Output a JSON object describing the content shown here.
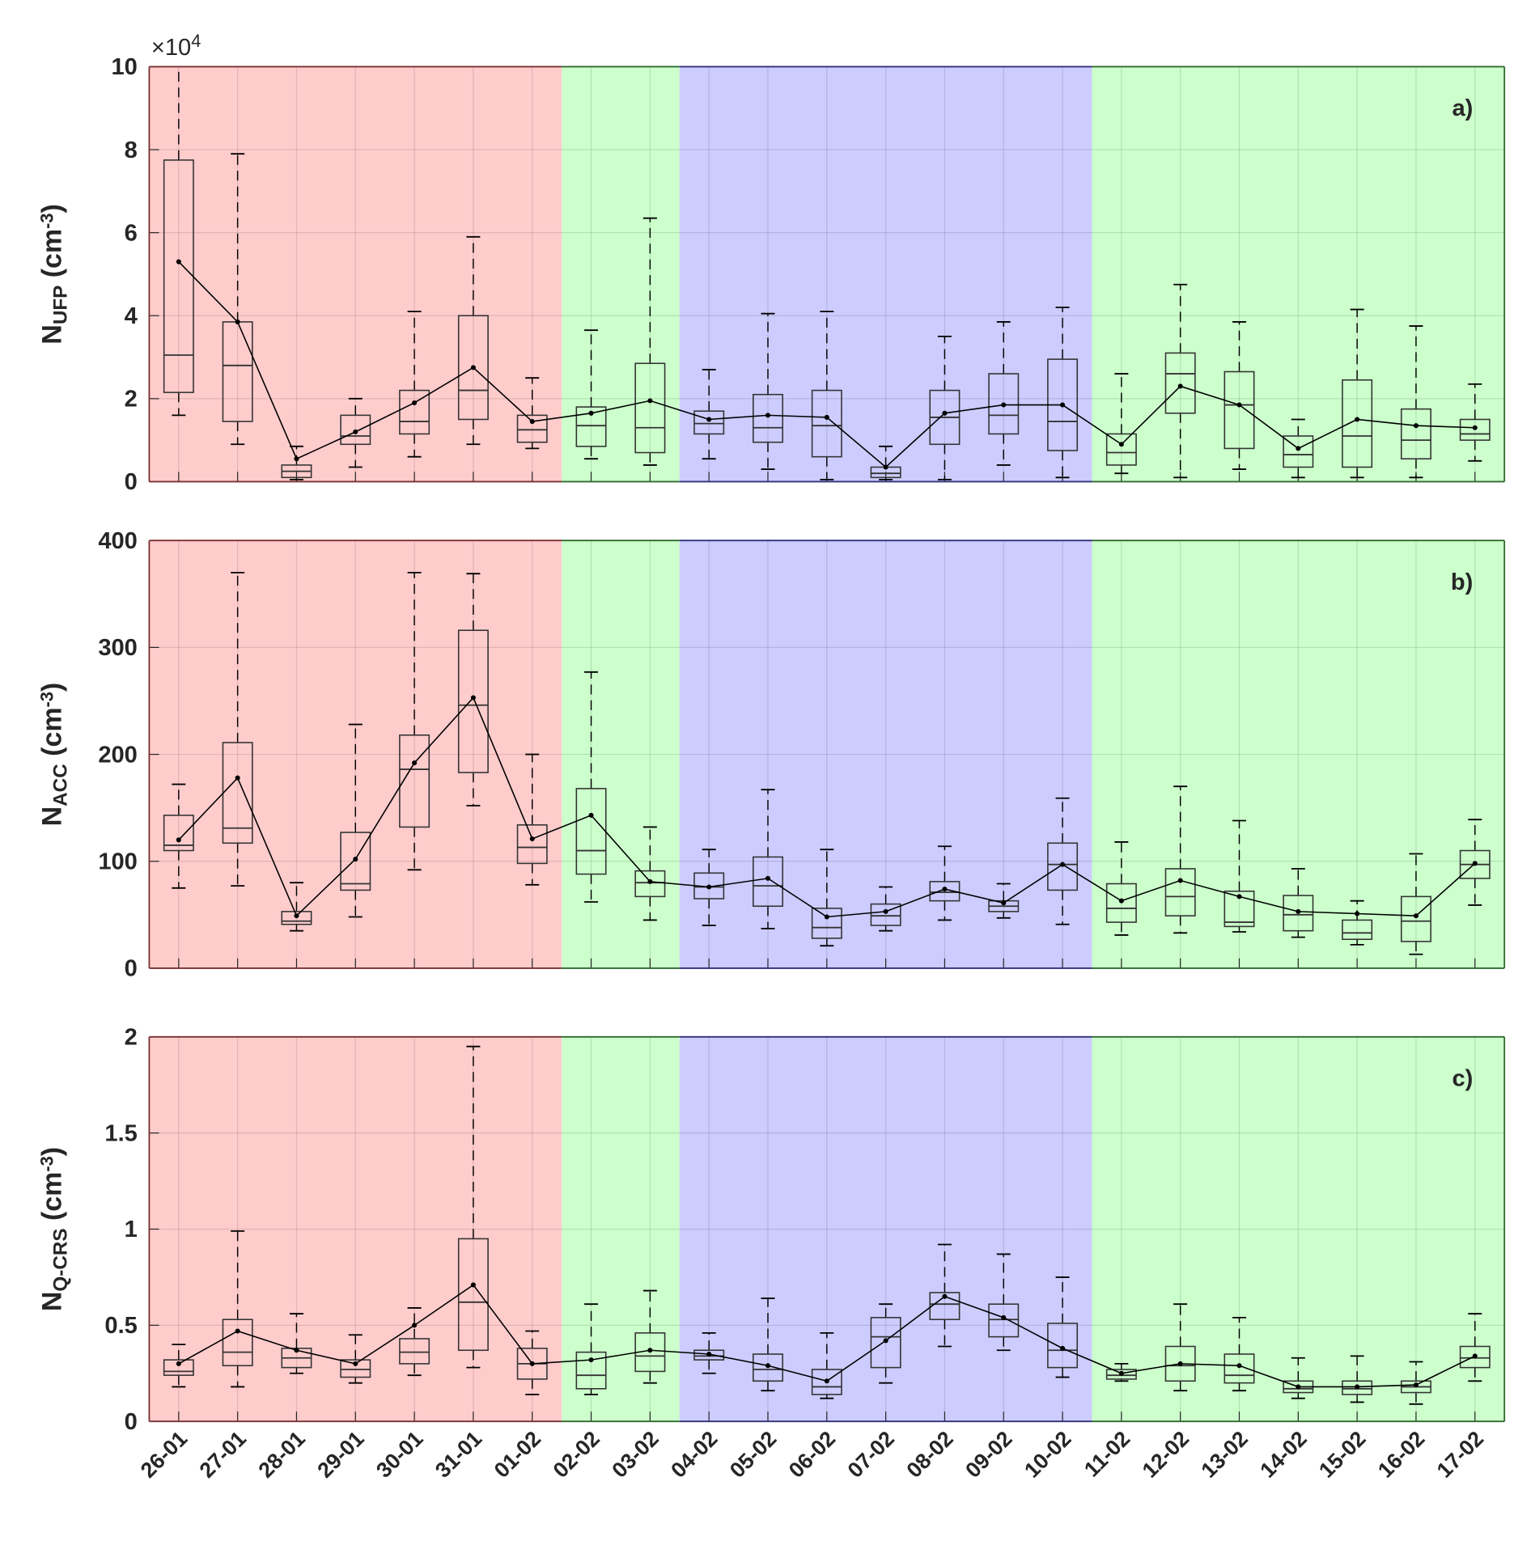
{
  "chart_data": [
    {
      "type": "box",
      "panel_label": "a)",
      "ylabel": {
        "main": "N",
        "sub": "UFP",
        "unit": " (cm",
        "sup": "-3",
        "close": ")"
      },
      "y_exponent": {
        "base": "×10",
        "power": "4"
      },
      "ylim": [
        0,
        10
      ],
      "yticks": [
        0,
        2,
        4,
        6,
        8,
        10
      ],
      "grid": true,
      "categories": [
        "26-01",
        "27-01",
        "28-01",
        "29-01",
        "30-01",
        "31-01",
        "01-02",
        "02-02",
        "03-02",
        "04-02",
        "05-02",
        "06-02",
        "07-02",
        "08-02",
        "09-02",
        "10-02",
        "11-02",
        "12-02",
        "13-02",
        "14-02",
        "15-02",
        "16-02",
        "17-02"
      ],
      "boxes": [
        [
          1.6,
          2.15,
          3.05,
          7.75,
          10,
          5.3
        ],
        [
          0.9,
          1.45,
          2.8,
          3.85,
          7.9,
          3.85
        ],
        [
          0.05,
          0.1,
          0.25,
          0.4,
          0.85,
          0.55
        ],
        [
          0.35,
          0.9,
          1.1,
          1.6,
          2.0,
          1.2
        ],
        [
          0.6,
          1.15,
          1.45,
          2.2,
          4.1,
          1.9
        ],
        [
          0.9,
          1.5,
          2.2,
          4.0,
          5.9,
          2.75
        ],
        [
          0.8,
          0.95,
          1.25,
          1.6,
          2.5,
          1.45
        ],
        [
          0.55,
          0.85,
          1.35,
          1.8,
          3.65,
          1.65
        ],
        [
          0.4,
          0.7,
          1.3,
          2.85,
          6.35,
          1.95
        ],
        [
          0.55,
          1.15,
          1.4,
          1.7,
          2.7,
          1.5
        ],
        [
          0.3,
          0.95,
          1.3,
          2.1,
          4.05,
          1.6
        ],
        [
          0.05,
          0.6,
          1.35,
          2.2,
          4.1,
          1.55
        ],
        [
          0.05,
          0.1,
          0.2,
          0.35,
          0.85,
          0.35
        ],
        [
          0.05,
          0.9,
          1.55,
          2.2,
          3.5,
          1.65
        ],
        [
          0.4,
          1.15,
          1.6,
          2.6,
          3.85,
          1.85
        ],
        [
          0.1,
          0.75,
          1.45,
          2.95,
          4.2,
          1.85
        ],
        [
          0.2,
          0.4,
          0.7,
          1.15,
          2.6,
          0.9
        ],
        [
          0.1,
          1.65,
          2.6,
          3.1,
          4.75,
          2.3
        ],
        [
          0.3,
          0.8,
          1.85,
          2.65,
          3.85,
          1.85
        ],
        [
          0.1,
          0.35,
          0.65,
          1.1,
          1.5,
          0.8
        ],
        [
          0.1,
          0.35,
          1.1,
          2.45,
          4.15,
          1.5
        ],
        [
          0.1,
          0.55,
          1.0,
          1.75,
          3.75,
          1.35
        ],
        [
          0.5,
          1.0,
          1.15,
          1.5,
          2.35,
          1.3
        ]
      ]
    },
    {
      "type": "box",
      "panel_label": "b)",
      "ylabel": {
        "main": "N",
        "sub": "ACC",
        "unit": " (cm",
        "sup": "-3",
        "close": ")"
      },
      "ylim": [
        0,
        400
      ],
      "yticks": [
        0,
        100,
        200,
        300,
        400
      ],
      "grid": true,
      "boxes": [
        [
          75,
          110,
          115,
          143,
          172,
          120
        ],
        [
          77,
          117,
          131,
          211,
          370,
          178
        ],
        [
          35,
          41,
          44,
          53,
          80,
          49
        ],
        [
          48,
          73,
          79,
          127,
          228,
          102
        ],
        [
          92,
          132,
          186,
          218,
          370,
          192
        ],
        [
          152,
          183,
          246,
          316,
          369,
          253
        ],
        [
          78,
          98,
          113,
          134,
          200,
          121
        ],
        [
          62,
          88,
          110,
          168,
          277,
          143
        ],
        [
          45,
          67,
          80,
          91,
          132,
          81
        ],
        [
          40,
          65,
          76,
          89,
          111,
          76
        ],
        [
          37,
          58,
          77,
          104,
          167,
          84
        ],
        [
          21,
          28,
          38,
          56,
          111,
          48
        ],
        [
          35,
          40,
          49,
          60,
          76,
          53
        ],
        [
          45,
          63,
          71,
          81,
          114,
          74
        ],
        [
          47,
          53,
          58,
          63,
          79,
          61
        ],
        [
          41,
          73,
          97,
          117,
          159,
          97
        ],
        [
          31,
          43,
          56,
          79,
          118,
          63
        ],
        [
          33,
          49,
          67,
          93,
          170,
          82
        ],
        [
          34,
          39,
          43,
          72,
          138,
          67
        ],
        [
          29,
          35,
          50,
          68,
          93,
          53
        ],
        [
          22,
          27,
          33,
          45,
          63,
          51
        ],
        [
          13,
          25,
          44,
          67,
          107,
          49
        ],
        [
          59,
          84,
          97,
          110,
          139,
          98
        ]
      ]
    },
    {
      "type": "box",
      "panel_label": "c)",
      "ylabel": {
        "main": "N",
        "sub": "Q-CRS",
        "unit": " (cm",
        "sup": "-3",
        "close": ")"
      },
      "ylim": [
        0,
        2
      ],
      "yticks": [
        0,
        0.5,
        1,
        1.5,
        2
      ],
      "grid": true,
      "boxes": [
        [
          0.18,
          0.24,
          0.26,
          0.32,
          0.4,
          0.3
        ],
        [
          0.18,
          0.29,
          0.36,
          0.53,
          0.99,
          0.47
        ],
        [
          0.25,
          0.28,
          0.33,
          0.38,
          0.56,
          0.37
        ],
        [
          0.2,
          0.23,
          0.27,
          0.32,
          0.45,
          0.3
        ],
        [
          0.24,
          0.3,
          0.36,
          0.43,
          0.59,
          0.5
        ],
        [
          0.28,
          0.37,
          0.62,
          0.95,
          1.95,
          0.71
        ],
        [
          0.14,
          0.22,
          0.3,
          0.38,
          0.47,
          0.3
        ],
        [
          0.14,
          0.17,
          0.24,
          0.36,
          0.61,
          0.32
        ],
        [
          0.2,
          0.26,
          0.34,
          0.46,
          0.68,
          0.37
        ],
        [
          0.25,
          0.32,
          0.34,
          0.37,
          0.46,
          0.35
        ],
        [
          0.16,
          0.21,
          0.27,
          0.35,
          0.64,
          0.29
        ],
        [
          0.12,
          0.14,
          0.18,
          0.27,
          0.46,
          0.21
        ],
        [
          0.2,
          0.28,
          0.44,
          0.54,
          0.61,
          0.42
        ],
        [
          0.39,
          0.53,
          0.61,
          0.67,
          0.92,
          0.65
        ],
        [
          0.37,
          0.44,
          0.53,
          0.61,
          0.87,
          0.54
        ],
        [
          0.23,
          0.28,
          0.37,
          0.51,
          0.75,
          0.38
        ],
        [
          0.21,
          0.22,
          0.24,
          0.27,
          0.3,
          0.25
        ],
        [
          0.16,
          0.21,
          0.29,
          0.39,
          0.61,
          0.3
        ],
        [
          0.16,
          0.2,
          0.24,
          0.35,
          0.54,
          0.29
        ],
        [
          0.12,
          0.15,
          0.17,
          0.21,
          0.33,
          0.18
        ],
        [
          0.1,
          0.14,
          0.17,
          0.21,
          0.34,
          0.18
        ],
        [
          0.09,
          0.15,
          0.18,
          0.21,
          0.31,
          0.19
        ],
        [
          0.21,
          0.28,
          0.33,
          0.39,
          0.56,
          0.34
        ]
      ]
    }
  ],
  "box_fields": [
    "whisker_low",
    "q1",
    "median",
    "q3",
    "whisker_high",
    "mean"
  ],
  "periods": [
    {
      "from": "26-01",
      "to": "01-02",
      "color": "#ffcccc"
    },
    {
      "from": "02-02",
      "to": "03-02",
      "color": "#ccffcc"
    },
    {
      "from": "04-02",
      "to": "10-02",
      "color": "#ccccff"
    },
    {
      "from": "11-02",
      "to": "17-02",
      "color": "#ccffcc"
    }
  ]
}
